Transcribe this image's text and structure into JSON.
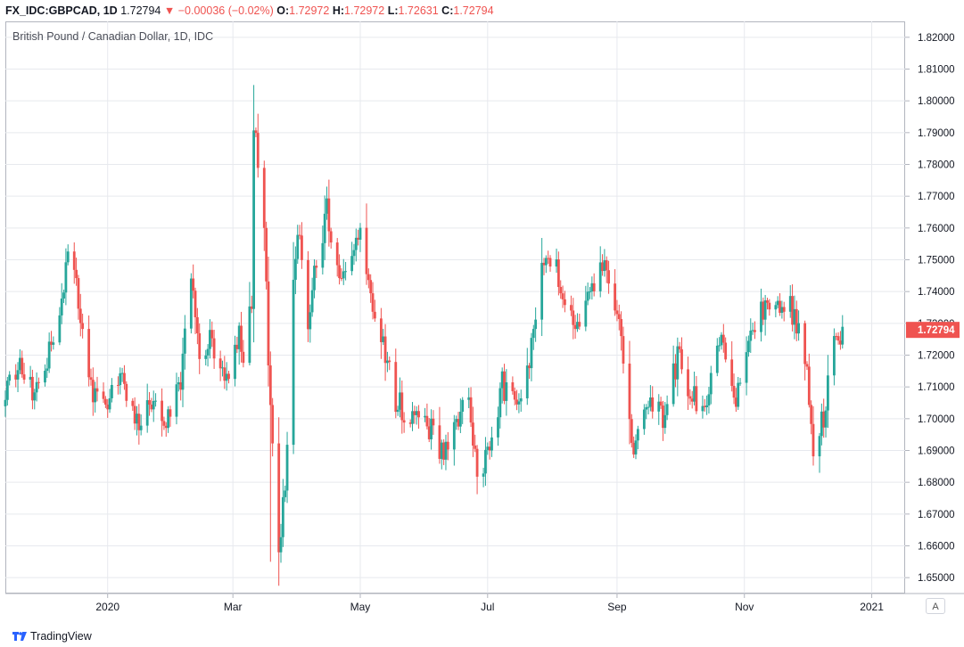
{
  "header": {
    "symbol": "FX_IDC:GBPCAD, 1D",
    "last": "1.72794",
    "arrow": "▼",
    "change": "−0.00036 (−0.02%)",
    "o_label": "O:",
    "o_value": "1.72972",
    "h_label": "H:",
    "h_value": "1.72972",
    "l_label": "L:",
    "l_value": "1.72631",
    "c_label": "C:",
    "c_value": "1.72794"
  },
  "chart_title": "British Pound / Canadian Dollar, 1D, IDC",
  "price_scale_button": "A",
  "footer": {
    "brand": "TradingView"
  },
  "colors": {
    "up": "#26a69a",
    "down": "#ef5350",
    "grid": "#e7e9ee",
    "axis_text": "#131722"
  },
  "chart_data": {
    "type": "candlestick",
    "title": "British Pound / Canadian Dollar, 1D, IDC",
    "last_price": 1.72794,
    "ylim": [
      1.645,
      1.825
    ],
    "y_ticks": [
      "1.65000",
      "1.66000",
      "1.67000",
      "1.68000",
      "1.69000",
      "1.70000",
      "1.71000",
      "1.72000",
      "1.73000",
      "1.74000",
      "1.75000",
      "1.76000",
      "1.77000",
      "1.78000",
      "1.79000",
      "1.80000",
      "1.81000",
      "1.82000"
    ],
    "x_ticks": [
      {
        "label": "2020",
        "date": "2020-01-01"
      },
      {
        "label": "Mar",
        "date": "2020-03-01"
      },
      {
        "label": "May",
        "date": "2020-05-01"
      },
      {
        "label": "Jul",
        "date": "2020-07-01"
      },
      {
        "label": "Sep",
        "date": "2020-09-01"
      },
      {
        "label": "Nov",
        "date": "2020-11-01"
      },
      {
        "label": "2021",
        "date": "2021-01-01"
      }
    ],
    "x_range": [
      "2019-11-13",
      "2021-01-17"
    ],
    "grid": true,
    "close_path": [
      [
        "2019-11-13",
        1.708
      ],
      [
        "2019-11-20",
        1.716
      ],
      [
        "2019-11-27",
        1.708
      ],
      [
        "2019-12-04",
        1.722
      ],
      [
        "2019-12-11",
        1.741
      ],
      [
        "2019-12-13",
        1.756
      ],
      [
        "2019-12-18",
        1.736
      ],
      [
        "2019-12-25",
        1.709
      ],
      [
        "2020-01-01",
        1.705
      ],
      [
        "2020-01-08",
        1.713
      ],
      [
        "2020-01-15",
        1.7
      ],
      [
        "2020-01-22",
        1.704
      ],
      [
        "2020-01-29",
        1.697
      ],
      [
        "2020-02-05",
        1.713
      ],
      [
        "2020-02-10",
        1.748
      ],
      [
        "2020-02-14",
        1.718
      ],
      [
        "2020-02-19",
        1.727
      ],
      [
        "2020-02-26",
        1.712
      ],
      [
        "2020-03-04",
        1.725
      ],
      [
        "2020-03-06",
        1.719
      ],
      [
        "2020-03-10",
        1.738
      ],
      [
        "2020-03-11",
        1.792
      ],
      [
        "2020-03-16",
        1.761
      ],
      [
        "2020-03-19",
        1.7
      ],
      [
        "2020-03-23",
        1.66
      ],
      [
        "2020-03-26",
        1.678
      ],
      [
        "2020-03-30",
        1.745
      ],
      [
        "2020-04-02",
        1.76
      ],
      [
        "2020-04-06",
        1.728
      ],
      [
        "2020-04-09",
        1.745
      ],
      [
        "2020-04-15",
        1.765
      ],
      [
        "2020-04-21",
        1.745
      ],
      [
        "2020-04-27",
        1.747
      ],
      [
        "2020-05-01",
        1.758
      ],
      [
        "2020-05-06",
        1.735
      ],
      [
        "2020-05-12",
        1.724
      ],
      [
        "2020-05-18",
        1.706
      ],
      [
        "2020-05-25",
        1.699
      ],
      [
        "2020-06-01",
        1.702
      ],
      [
        "2020-06-08",
        1.687
      ],
      [
        "2020-06-15",
        1.698
      ],
      [
        "2020-06-22",
        1.705
      ],
      [
        "2020-06-26",
        1.681
      ],
      [
        "2020-07-02",
        1.689
      ],
      [
        "2020-07-08",
        1.711
      ],
      [
        "2020-07-15",
        1.704
      ],
      [
        "2020-07-22",
        1.722
      ],
      [
        "2020-07-29",
        1.755
      ],
      [
        "2020-08-05",
        1.743
      ],
      [
        "2020-08-12",
        1.728
      ],
      [
        "2020-08-19",
        1.739
      ],
      [
        "2020-08-26",
        1.748
      ],
      [
        "2020-09-02",
        1.733
      ],
      [
        "2020-09-09",
        1.69
      ],
      [
        "2020-09-16",
        1.708
      ],
      [
        "2020-09-23",
        1.7
      ],
      [
        "2020-09-30",
        1.719
      ],
      [
        "2020-10-07",
        1.708
      ],
      [
        "2020-10-14",
        1.704
      ],
      [
        "2020-10-21",
        1.727
      ],
      [
        "2020-10-28",
        1.708
      ],
      [
        "2020-11-04",
        1.724
      ],
      [
        "2020-11-11",
        1.736
      ],
      [
        "2020-11-18",
        1.737
      ],
      [
        "2020-11-25",
        1.733
      ],
      [
        "2020-12-01",
        1.714
      ],
      [
        "2020-12-04",
        1.689
      ],
      [
        "2020-12-09",
        1.701
      ],
      [
        "2020-12-14",
        1.726
      ],
      [
        "2020-12-18",
        1.728
      ]
    ],
    "extremes": {
      "high": {
        "date": "2020-03-11",
        "value": 1.805
      },
      "low": {
        "date": "2020-03-19",
        "value": 1.655
      }
    }
  }
}
